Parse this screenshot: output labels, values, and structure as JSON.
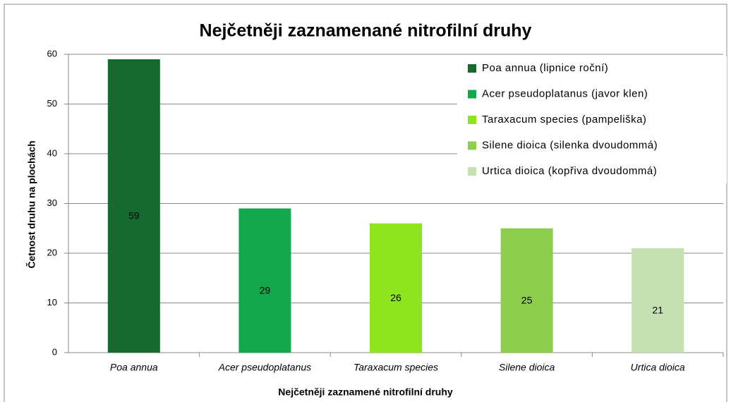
{
  "chart_data": {
    "type": "bar",
    "title": "Nejčetněji zaznamenané nitrofilní druhy",
    "x_label": "Nejčetněji zaznamené nitrofilní druhy",
    "y_label": "Četnost druhu na plochách",
    "categories": [
      "Poa annua",
      "Acer pseudoplatanus",
      "Taraxacum species",
      "Silene dioica",
      "Urtica dioica"
    ],
    "values": [
      59,
      29,
      26,
      25,
      21
    ],
    "colors": [
      "#156b2f",
      "#13a84b",
      "#8fe51b",
      "#8dcf4d",
      "#c5e0b1"
    ],
    "legend": [
      "Poa annua (lipnice roční)",
      "Acer pseudoplatanus (javor klen)",
      "Taraxacum species (pampeliška)",
      "Silene dioica (silenka dvoudommá)",
      "Urtica dioica (kopřiva dvoudommá)"
    ],
    "ylim": [
      0,
      60
    ],
    "yticks": [
      0,
      10,
      20,
      30,
      40,
      50,
      60
    ],
    "grid": true
  }
}
